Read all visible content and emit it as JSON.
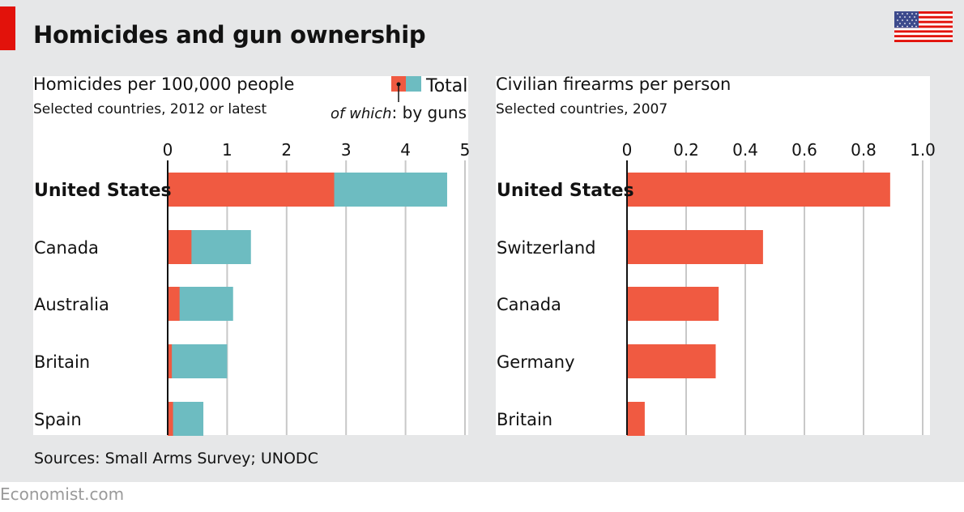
{
  "title": "Homicides and gun ownership",
  "source": "Sources: Small Arms Survey; UNODC",
  "brand": "Economist.com",
  "colors": {
    "red": "#f05a41",
    "teal": "#6dbcc1",
    "panel": "#e6e7e8",
    "accent": "#e2120b"
  },
  "chart_data": [
    {
      "type": "bar",
      "title": "Homicides per 100,000 people",
      "subtitle": "Selected countries, 2012 or latest",
      "legend": {
        "total": "Total",
        "of_which": "of which",
        "by_guns": ": by guns",
        "position": "top-right"
      },
      "categories": [
        "United States",
        "Canada",
        "Australia",
        "Britain",
        "Spain"
      ],
      "series": [
        {
          "name": "Total",
          "values": [
            4.7,
            1.4,
            1.1,
            1.0,
            0.6
          ]
        },
        {
          "name": "of which: by guns",
          "values": [
            2.8,
            0.4,
            0.2,
            0.07,
            0.09
          ]
        }
      ],
      "xlim": [
        0,
        5
      ],
      "ticks": [
        0,
        1,
        2,
        3,
        4,
        5
      ],
      "grid": true
    },
    {
      "type": "bar",
      "title": "Civilian firearms per person",
      "subtitle": "Selected countries, 2007",
      "categories": [
        "United States",
        "Switzerland",
        "Canada",
        "Germany",
        "Britain"
      ],
      "series": [
        {
          "name": "Civilian firearms per person",
          "values": [
            0.89,
            0.46,
            0.31,
            0.3,
            0.06
          ]
        }
      ],
      "xlim": [
        0,
        1.0
      ],
      "ticks": [
        "0",
        "0.2",
        "0.4",
        "0.6",
        "0.8",
        "1.0"
      ],
      "grid": true
    }
  ]
}
